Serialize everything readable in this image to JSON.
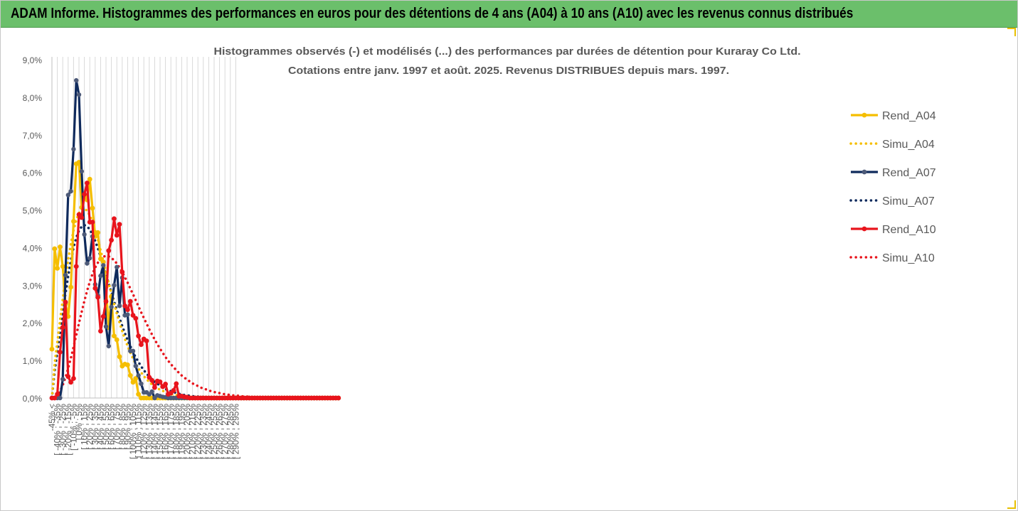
{
  "banner": {
    "title": "ADAM Informe. Histogrammes des performances en euros pour des détentions de 4 ans (A04) à 10 ans (A10) avec les revenus connus distribués"
  },
  "colors": {
    "banner_bg": "#6bbf6b",
    "a04": "#f5be00",
    "a07": "#0f2a5c",
    "a10": "#e8141c",
    "grid": "#d9d9d9"
  },
  "chart_data": {
    "type": "line",
    "title_lines": [
      "Histogrammes observés (-) et modélisés (...) des performances par durées de détention pour Kuraray Co Ltd.",
      "Cotations entre janv. 1997 et août. 2025. Revenus DISTRIBUES depuis mars. 1997."
    ],
    "y_ticks": [
      "0,0%",
      "1,0%",
      "2,0%",
      "3,0%",
      "4,0%",
      "5,0%",
      "6,0%",
      "7,0%",
      "8,0%",
      "9,0%"
    ],
    "ylim": [
      0,
      9
    ],
    "grid": "vertical",
    "legend_position": "right",
    "x_labels": [
      "-45% <",
      "[ -40% ; -35%",
      "[ -30% ; -25%",
      "[ -20% ; -15%",
      "[ -10% ; -5%",
      "[ 0% ; 5%",
      "[ 10% ; 15%",
      "[ 20% ; 25%",
      "[ 30% ; 35%",
      "[ 40% ; 45%",
      "[ 50% ; 55%",
      "[ 60% ; 65%",
      "[ 70% ; 75%",
      "[ 80% ; 85%",
      "[ 90% ; 95%",
      "[ 100% ; 105%",
      "[ 110% ; 115%",
      "[ 120% ; 125%",
      "[ 130% ; 135%",
      "[ 140% ; 145%",
      "[ 150% ; 155%",
      "[ 160% ; 165%",
      "[ 170% ; 175%",
      "[ 180% ; 185%",
      "[ 190% ; 195%",
      "[ 200% ; 205%",
      "[ 210% ; 215%",
      "[ 220% ; 225%",
      "[ 230% ; 235%",
      "[ 240% ; 245%",
      "[ 250% ; 255%",
      "[ 260% ; 265%",
      "[ 270% ; 275%",
      "[ 280% ; 285%",
      "[ 290% ; 295%"
    ],
    "series": [
      {
        "name": "Rend_A04",
        "style": "solid",
        "color": "#f5be00",
        "values": [
          1.3,
          3.97,
          3.45,
          4.02,
          3.5,
          2.5,
          2.17,
          2.95,
          4.7,
          6.23,
          6.27,
          5.07,
          5.4,
          5.27,
          5.82,
          5.05,
          4.3,
          4.4,
          3.7,
          3.62,
          2.95,
          1.87,
          2.7,
          1.65,
          1.55,
          1.1,
          0.85,
          0.9,
          0.88,
          0.6,
          0.42,
          0.52,
          0.1,
          0.0,
          0.0,
          0.0,
          0.0,
          0.0,
          0.0,
          0.0,
          0.0,
          0.0,
          0.0,
          0.0,
          0.0,
          0.0,
          0.0,
          0.0,
          0.0,
          0.0,
          0.0,
          0.0,
          0.0,
          0.0,
          0.0,
          0.0,
          0.0,
          0.0,
          0.0,
          0.0,
          0.0,
          0.0,
          0.0,
          0.0,
          0.0,
          0.0,
          0.0,
          0.0,
          0.0,
          0.0,
          0.0,
          0.0,
          0.0,
          0.0,
          0.0,
          0.0,
          0.0,
          0.0,
          0.0,
          0.0,
          0.0,
          0.0,
          0.0,
          0.0,
          0.0,
          0.0,
          0.0,
          0.0,
          0.0,
          0.0,
          0.0,
          0.0,
          0.0,
          0.0,
          0.0,
          0.0,
          0.0,
          0.0,
          0.0,
          0.0,
          0.0,
          0.0,
          0.0,
          0.0,
          0.0,
          0.0,
          0.0
        ]
      },
      {
        "name": "Simu_A04",
        "style": "dotted",
        "color": "#f5be00",
        "values": [
          0.0,
          0.92,
          1.48,
          2.06,
          2.62,
          3.17,
          3.67,
          4.1,
          4.46,
          4.73,
          4.92,
          5.02,
          5.04,
          4.98,
          4.86,
          4.68,
          4.46,
          4.21,
          3.93,
          3.65,
          3.35,
          3.06,
          2.78,
          2.51,
          2.25,
          2.01,
          1.78,
          1.57,
          1.38,
          1.21,
          1.05,
          0.91,
          0.79,
          0.68,
          0.58,
          0.5,
          0.43,
          0.36,
          0.31,
          0.26,
          0.22,
          0.19,
          0.16,
          0.13,
          0.11,
          0.09,
          0.08,
          0.07,
          0.05,
          0.04,
          0.04,
          0.03,
          0.03,
          0.02,
          0.02,
          0.01,
          0.01,
          0.01,
          0.01,
          0.01,
          0.01,
          0.0,
          0.0,
          0.0,
          0.0,
          0.0,
          0.0,
          0.0,
          0.0,
          0.0,
          0.0,
          0.0,
          0.0,
          0.0,
          0.0,
          0.0,
          0.0,
          0.0,
          0.0,
          0.0,
          0.0,
          0.0,
          0.0,
          0.0,
          0.0,
          0.0,
          0.0,
          0.0,
          0.0,
          0.0,
          0.0,
          0.0,
          0.0,
          0.0,
          0.0,
          0.0,
          0.0,
          0.0,
          0.0,
          0.0,
          0.0,
          0.0,
          0.0,
          0.0,
          0.0,
          0.0,
          0.0
        ]
      },
      {
        "name": "Rend_A07",
        "style": "solid",
        "color": "#0f2a5c",
        "values": [
          0.0,
          0.0,
          0.0,
          0.0,
          0.5,
          3.27,
          5.4,
          5.5,
          6.62,
          8.45,
          8.07,
          6.03,
          4.35,
          3.58,
          3.72,
          4.3,
          3.02,
          2.73,
          3.25,
          3.53,
          1.9,
          1.38,
          2.42,
          3.0,
          3.48,
          2.45,
          3.2,
          2.2,
          2.22,
          1.25,
          1.25,
          0.85,
          0.6,
          0.38,
          0.15,
          0.15,
          0.1,
          0.17,
          0.0,
          0.07,
          0.05,
          0.03,
          0.02,
          0.0,
          0.0,
          0.0,
          0.0,
          0.0,
          0.0,
          0.0,
          0.0,
          0.0,
          0.0,
          0.0,
          0.0,
          0.0,
          0.0,
          0.0,
          0.0,
          0.0,
          0.0,
          0.0,
          0.0,
          0.0,
          0.0,
          0.0,
          0.0,
          0.0,
          0.0,
          0.0,
          0.0,
          0.0,
          0.0,
          0.0,
          0.0,
          0.0,
          0.0,
          0.0,
          0.0,
          0.0,
          0.0,
          0.0,
          0.0,
          0.0,
          0.0,
          0.0,
          0.0,
          0.0,
          0.0,
          0.0,
          0.0,
          0.0,
          0.0,
          0.0,
          0.0,
          0.0,
          0.0,
          0.0,
          0.0,
          0.0,
          0.0,
          0.0,
          0.0,
          0.0,
          0.0,
          0.0,
          0.0
        ]
      },
      {
        "name": "Simu_A07",
        "style": "dotted",
        "color": "#0f2a5c",
        "values": [
          0.0,
          0.72,
          1.22,
          1.74,
          2.26,
          2.77,
          3.24,
          3.65,
          4.0,
          4.27,
          4.45,
          4.56,
          4.6,
          4.57,
          4.48,
          4.35,
          4.18,
          3.98,
          3.76,
          3.53,
          3.29,
          3.05,
          2.81,
          2.57,
          2.34,
          2.12,
          1.92,
          1.72,
          1.54,
          1.38,
          1.22,
          1.08,
          0.96,
          0.84,
          0.74,
          0.65,
          0.57,
          0.5,
          0.43,
          0.38,
          0.33,
          0.28,
          0.24,
          0.21,
          0.18,
          0.16,
          0.13,
          0.11,
          0.1,
          0.08,
          0.07,
          0.06,
          0.05,
          0.04,
          0.04,
          0.03,
          0.03,
          0.02,
          0.02,
          0.02,
          0.01,
          0.01,
          0.01,
          0.01,
          0.01,
          0.01,
          0.0,
          0.0,
          0.0,
          0.0,
          0.0,
          0.0,
          0.0,
          0.0,
          0.0,
          0.0,
          0.0,
          0.0,
          0.0,
          0.0,
          0.0,
          0.0,
          0.0,
          0.0,
          0.0,
          0.0,
          0.0,
          0.0,
          0.0,
          0.0,
          0.0,
          0.0,
          0.0,
          0.0,
          0.0,
          0.0,
          0.0,
          0.0,
          0.0,
          0.0,
          0.0,
          0.0,
          0.0,
          0.0,
          0.0,
          0.0,
          0.0
        ]
      },
      {
        "name": "Rend_A10",
        "style": "solid",
        "color": "#e8141c",
        "values": [
          0.0,
          0.0,
          0.1,
          1.22,
          1.88,
          2.55,
          0.57,
          0.42,
          0.52,
          3.5,
          4.88,
          4.8,
          5.42,
          5.72,
          4.68,
          4.68,
          2.92,
          2.68,
          1.78,
          2.17,
          2.57,
          3.92,
          4.2,
          4.77,
          4.33,
          4.62,
          3.35,
          2.45,
          2.35,
          2.57,
          2.2,
          2.12,
          1.65,
          1.42,
          1.57,
          1.52,
          0.55,
          0.47,
          0.28,
          0.45,
          0.43,
          0.3,
          0.37,
          0.1,
          0.13,
          0.2,
          0.38,
          0.05,
          0.05,
          0.03,
          0.02,
          0.0,
          0.0,
          0.0,
          0.0,
          0.0,
          0.0,
          0.0,
          0.0,
          0.0,
          0.0,
          0.0,
          0.0,
          0.0,
          0.0,
          0.0,
          0.0,
          0.0,
          0.0,
          0.0,
          0.0,
          0.0,
          0.0,
          0.0,
          0.0,
          0.0,
          0.0,
          0.0,
          0.0,
          0.0,
          0.0,
          0.0,
          0.0,
          0.0,
          0.0,
          0.0,
          0.0,
          0.0,
          0.0,
          0.0,
          0.0,
          0.0,
          0.0,
          0.0,
          0.0,
          0.0,
          0.0,
          0.0,
          0.0,
          0.0,
          0.0,
          0.0,
          0.0,
          0.0,
          0.0,
          0.0,
          0.0
        ]
      },
      {
        "name": "Simu_A10",
        "style": "dotted",
        "color": "#e8141c",
        "values": [
          0.0,
          0.02,
          0.06,
          0.18,
          0.34,
          0.54,
          0.79,
          1.06,
          1.36,
          1.67,
          1.99,
          2.29,
          2.58,
          2.85,
          3.09,
          3.3,
          3.47,
          3.6,
          3.7,
          3.76,
          3.78,
          3.77,
          3.73,
          3.66,
          3.58,
          3.47,
          3.35,
          3.21,
          3.07,
          2.91,
          2.76,
          2.6,
          2.44,
          2.28,
          2.13,
          1.98,
          1.83,
          1.69,
          1.56,
          1.43,
          1.31,
          1.2,
          1.09,
          0.99,
          0.9,
          0.82,
          0.74,
          0.67,
          0.6,
          0.54,
          0.49,
          0.44,
          0.39,
          0.35,
          0.32,
          0.28,
          0.25,
          0.23,
          0.2,
          0.18,
          0.16,
          0.14,
          0.13,
          0.11,
          0.1,
          0.09,
          0.08,
          0.07,
          0.06,
          0.06,
          0.05,
          0.04,
          0.04,
          0.03,
          0.03,
          0.03,
          0.02,
          0.02,
          0.02,
          0.02,
          0.01,
          0.01,
          0.01,
          0.01,
          0.01,
          0.01,
          0.01,
          0.01,
          0.0,
          0.0,
          0.0,
          0.0,
          0.0,
          0.0,
          0.0,
          0.0,
          0.0,
          0.0,
          0.0,
          0.0,
          0.0,
          0.0,
          0.0,
          0.0,
          0.0,
          0.0,
          0.0
        ]
      }
    ]
  }
}
